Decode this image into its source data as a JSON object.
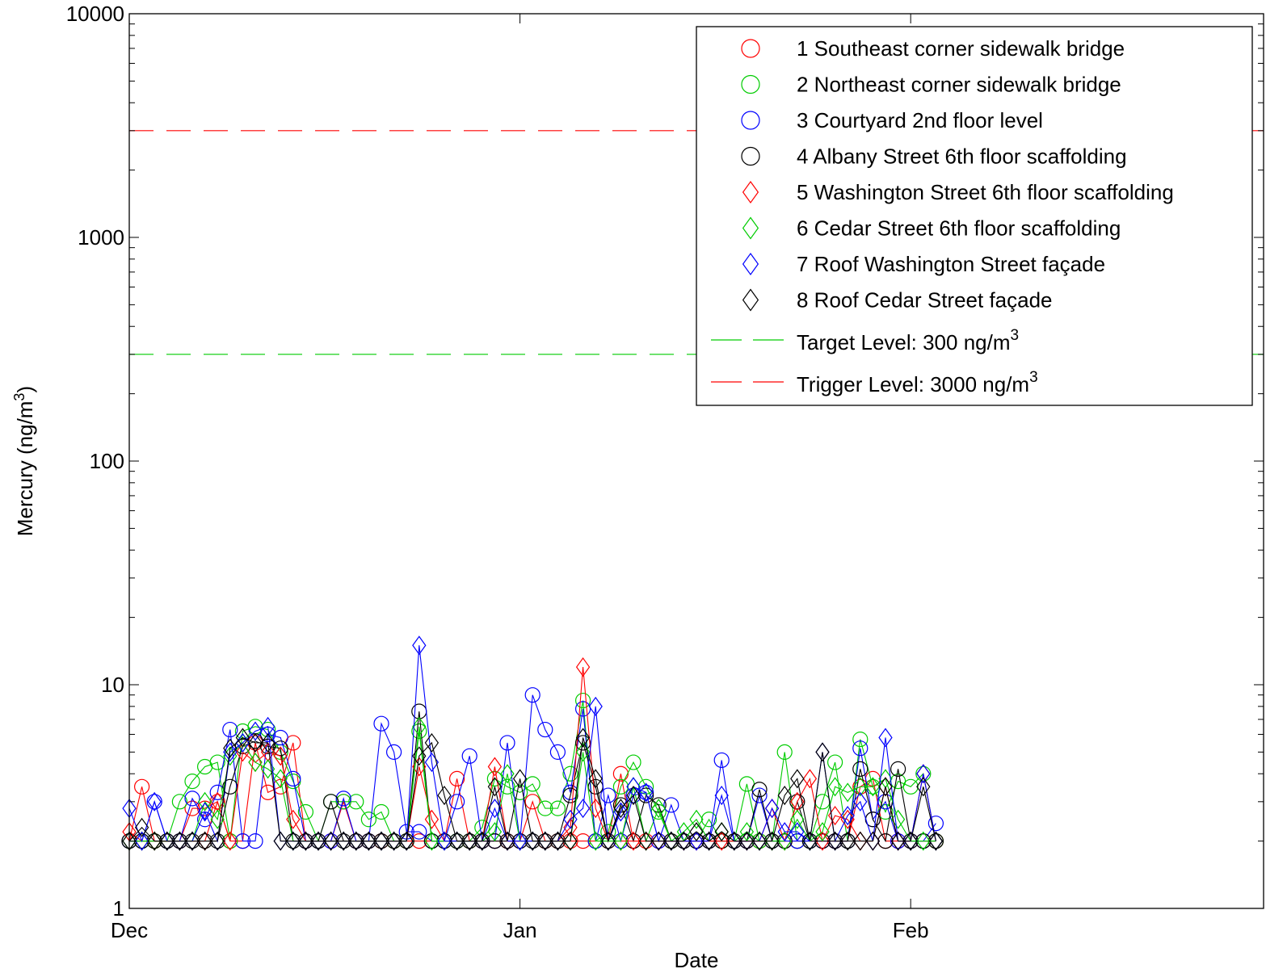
{
  "chart_data": {
    "type": "line",
    "xlabel": "Date",
    "ylabel": "Mercury (ng/m",
    "ylabel_sup": "3",
    "ylabel_tail": ")",
    "yscale": "log",
    "ylim": [
      1,
      10000
    ],
    "xlim": [
      "2011-12-01",
      "2012-02-29"
    ],
    "x_ticks": [
      {
        "date": "2011-12-01",
        "label": "Dec"
      },
      {
        "date": "2012-01-01",
        "label": "Jan"
      },
      {
        "date": "2012-02-01",
        "label": "Feb"
      }
    ],
    "y_ticks": [
      {
        "value": 1,
        "label": "1"
      },
      {
        "value": 10,
        "label": "10"
      },
      {
        "value": 100,
        "label": "100"
      },
      {
        "value": 1000,
        "label": "1000"
      },
      {
        "value": 10000,
        "label": "10000"
      }
    ],
    "grid": false,
    "legend_position": "top-right",
    "dates": [
      "2011-12-01",
      "2011-12-02",
      "2011-12-03",
      "2011-12-04",
      "2011-12-05",
      "2011-12-06",
      "2011-12-07",
      "2011-12-08",
      "2011-12-09",
      "2011-12-10",
      "2011-12-11",
      "2011-12-12",
      "2011-12-13",
      "2011-12-14",
      "2011-12-15",
      "2011-12-16",
      "2011-12-17",
      "2011-12-18",
      "2011-12-19",
      "2011-12-20",
      "2011-12-21",
      "2011-12-22",
      "2011-12-23",
      "2011-12-24",
      "2011-12-25",
      "2011-12-26",
      "2011-12-27",
      "2011-12-28",
      "2011-12-29",
      "2011-12-30",
      "2011-12-31",
      "2012-01-01",
      "2012-01-02",
      "2012-01-03",
      "2012-01-04",
      "2012-01-05",
      "2012-01-06",
      "2012-01-07",
      "2012-01-08",
      "2012-01-09",
      "2012-01-10",
      "2012-01-11",
      "2012-01-12",
      "2012-01-13",
      "2012-01-14",
      "2012-01-15",
      "2012-01-16",
      "2012-01-17",
      "2012-01-18",
      "2012-01-19",
      "2012-01-20",
      "2012-01-21",
      "2012-01-22",
      "2012-01-23",
      "2012-01-24",
      "2012-01-25",
      "2012-01-26",
      "2012-01-27",
      "2012-01-28",
      "2012-01-29",
      "2012-01-30",
      "2012-01-31",
      "2012-02-01",
      "2012-02-02",
      "2012-02-03"
    ],
    "series": [
      {
        "name": "1 Southeast corner sidewalk bridge",
        "color": "#ff0000",
        "marker": "circle",
        "values": [
          2,
          3.5,
          2,
          2,
          2,
          2.8,
          2.8,
          3.0,
          2,
          2,
          5.5,
          3.3,
          3.5,
          5.5,
          2,
          2,
          2,
          3.0,
          2,
          2,
          2,
          2,
          2,
          2,
          2,
          2,
          3.8,
          2,
          2,
          2,
          2,
          2,
          3.0,
          2,
          2,
          2,
          2,
          2,
          2,
          4.0,
          2,
          2,
          2,
          2,
          2,
          2,
          2.0,
          2,
          2,
          2,
          2,
          2,
          2,
          2,
          2,
          2.0,
          2,
          2,
          3.5,
          3.8,
          2,
          2,
          2,
          2,
          2
        ]
      },
      {
        "name": "2 Northeast corner sidewalk bridge",
        "color": "#00cc00",
        "marker": "circle",
        "values": [
          2,
          2,
          2,
          2,
          3.0,
          3.7,
          4.3,
          4.5,
          2,
          6.2,
          6.5,
          6.3,
          5.0,
          3.7,
          2.7,
          2,
          3.0,
          3.0,
          3.0,
          2.5,
          2.7,
          2,
          2,
          6.2,
          2,
          2,
          2,
          2,
          2.3,
          3.8,
          3.5,
          3.3,
          3.6,
          2.8,
          2.8,
          4.0,
          8.5,
          2.0,
          2.2,
          3.5,
          4.5,
          3.5,
          2.7,
          2,
          2,
          2,
          2.5,
          2,
          2,
          3.6,
          2,
          2,
          5.0,
          2,
          2,
          3.0,
          4.5,
          2.0,
          5.7,
          3.5,
          2.7,
          3.7,
          3.5,
          4.0,
          2
        ]
      },
      {
        "name": "3 Courtyard 2nd floor level",
        "color": "#0000ff",
        "marker": "circle",
        "values": [
          2,
          2,
          3.0,
          2,
          2,
          3.1,
          2.5,
          3.3,
          6.3,
          2,
          2,
          6.0,
          5.8,
          3.8,
          2,
          2,
          2,
          3.1,
          2,
          2,
          6.7,
          5.0,
          2.2,
          2.2,
          2,
          2,
          3.0,
          4.8,
          2,
          2,
          5.5,
          2,
          9.0,
          6.3,
          5.0,
          3.3,
          7.8,
          2,
          3.2,
          2,
          3.2,
          3.3,
          2,
          2.9,
          2,
          2,
          2,
          4.6,
          2,
          2,
          3.2,
          2,
          2,
          2,
          2,
          2,
          2,
          2,
          5.2,
          2.5,
          3.0,
          2,
          2,
          2,
          2.4
        ]
      },
      {
        "name": "4 Albany Street 6th floor scaffolding",
        "color": "#000000",
        "marker": "circle",
        "values": [
          2,
          2,
          2,
          2,
          2,
          2,
          2,
          2,
          3.5,
          5.3,
          5.6,
          5.3,
          5.2,
          2,
          2,
          2,
          3.0,
          2,
          2,
          2,
          2,
          2,
          2,
          7.6,
          2,
          2,
          2,
          2,
          2,
          2,
          2,
          2,
          2,
          2,
          2,
          3.2,
          5.5,
          3.5,
          2,
          2.9,
          2,
          3.2,
          2.9,
          2,
          2,
          2,
          2,
          2,
          2,
          2,
          3.4,
          2,
          2,
          3.0,
          2,
          2,
          2,
          2,
          4.2,
          2.5,
          2,
          4.2,
          2,
          2,
          2
        ]
      },
      {
        "name": "5 Washington Street 6th floor scaffolding",
        "color": "#ff0000",
        "marker": "diamond",
        "values": [
          2.2,
          2,
          2,
          2,
          2,
          2,
          2,
          3.0,
          2,
          5.0,
          4.5,
          5.0,
          4.8,
          2.5,
          2,
          2,
          2,
          2,
          2,
          2,
          2,
          2,
          2,
          4.3,
          2.5,
          2,
          2,
          2,
          2,
          4.3,
          2,
          2,
          2,
          2,
          2,
          2.3,
          12.0,
          2.8,
          2,
          2,
          2,
          2,
          2,
          2,
          2,
          2,
          2,
          2,
          2,
          2,
          2,
          2.8,
          2,
          3.0,
          3.8,
          2,
          2.6,
          2.5,
          2,
          2,
          3.5,
          2,
          2,
          4.0,
          2
        ]
      },
      {
        "name": "6 Cedar Street 6th floor scaffolding",
        "color": "#00cc00",
        "marker": "diamond",
        "values": [
          2,
          2,
          2,
          2,
          2,
          2,
          3.0,
          2.5,
          4.8,
          5.5,
          4.5,
          4.2,
          3.8,
          2,
          2,
          2,
          2,
          2,
          2,
          2,
          2,
          2,
          2,
          6.5,
          2,
          2,
          2,
          2,
          2,
          2.2,
          4.0,
          2,
          2,
          2,
          2,
          2.0,
          5.0,
          2,
          2,
          2,
          3.5,
          2,
          2.8,
          2,
          2.2,
          2.5,
          2,
          2.2,
          2,
          2.2,
          2,
          2,
          2,
          2.5,
          2,
          2.2,
          3.5,
          3.3,
          3.5,
          3.5,
          3.8,
          2.5,
          2,
          2,
          2
        ]
      },
      {
        "name": "7 Roof Washington Street façade",
        "color": "#0000ff",
        "marker": "diamond",
        "values": [
          2.8,
          2,
          3.0,
          2,
          2,
          2,
          2.7,
          2,
          5.0,
          5.5,
          6.2,
          6.5,
          2,
          2,
          2,
          2,
          2,
          2,
          2,
          2,
          2,
          2,
          2,
          15.0,
          4.5,
          2,
          2,
          2,
          2,
          2.8,
          2,
          2,
          2,
          2,
          2,
          2.5,
          2.8,
          8.0,
          2,
          2.7,
          3.5,
          3.3,
          2,
          2,
          2,
          2,
          2,
          3.2,
          2,
          2,
          2,
          2.8,
          2.2,
          2.2,
          2,
          5.0,
          2,
          2.6,
          3.0,
          2,
          5.8,
          2,
          2,
          4.0,
          2
        ]
      },
      {
        "name": "8 Roof Cedar Street façade",
        "color": "#000000",
        "marker": "diamond",
        "values": [
          2,
          2.3,
          2,
          2,
          2,
          2,
          2,
          2,
          5.2,
          5.8,
          5.5,
          5.5,
          2,
          2,
          2,
          2,
          2,
          2,
          2,
          2,
          2,
          2,
          2,
          4.8,
          5.5,
          3.2,
          2,
          2,
          2,
          3.5,
          2,
          3.8,
          2,
          2,
          2,
          2,
          5.8,
          3.8,
          2,
          2.8,
          3.2,
          2,
          2,
          2,
          2,
          2.2,
          2,
          2.2,
          2,
          2,
          2,
          2,
          3.2,
          3.8,
          2,
          5.0,
          2,
          2,
          2,
          2,
          3.5,
          2,
          2,
          3.5,
          2
        ]
      }
    ],
    "reference_lines": [
      {
        "name": "Target Level: 300 ng/m",
        "sup": "3",
        "value": 300,
        "color": "#00cc00",
        "style": "dashed"
      },
      {
        "name": "Trigger Level: 3000 ng/m",
        "sup": "3",
        "value": 3000,
        "color": "#ff0000",
        "style": "dashed"
      }
    ]
  }
}
